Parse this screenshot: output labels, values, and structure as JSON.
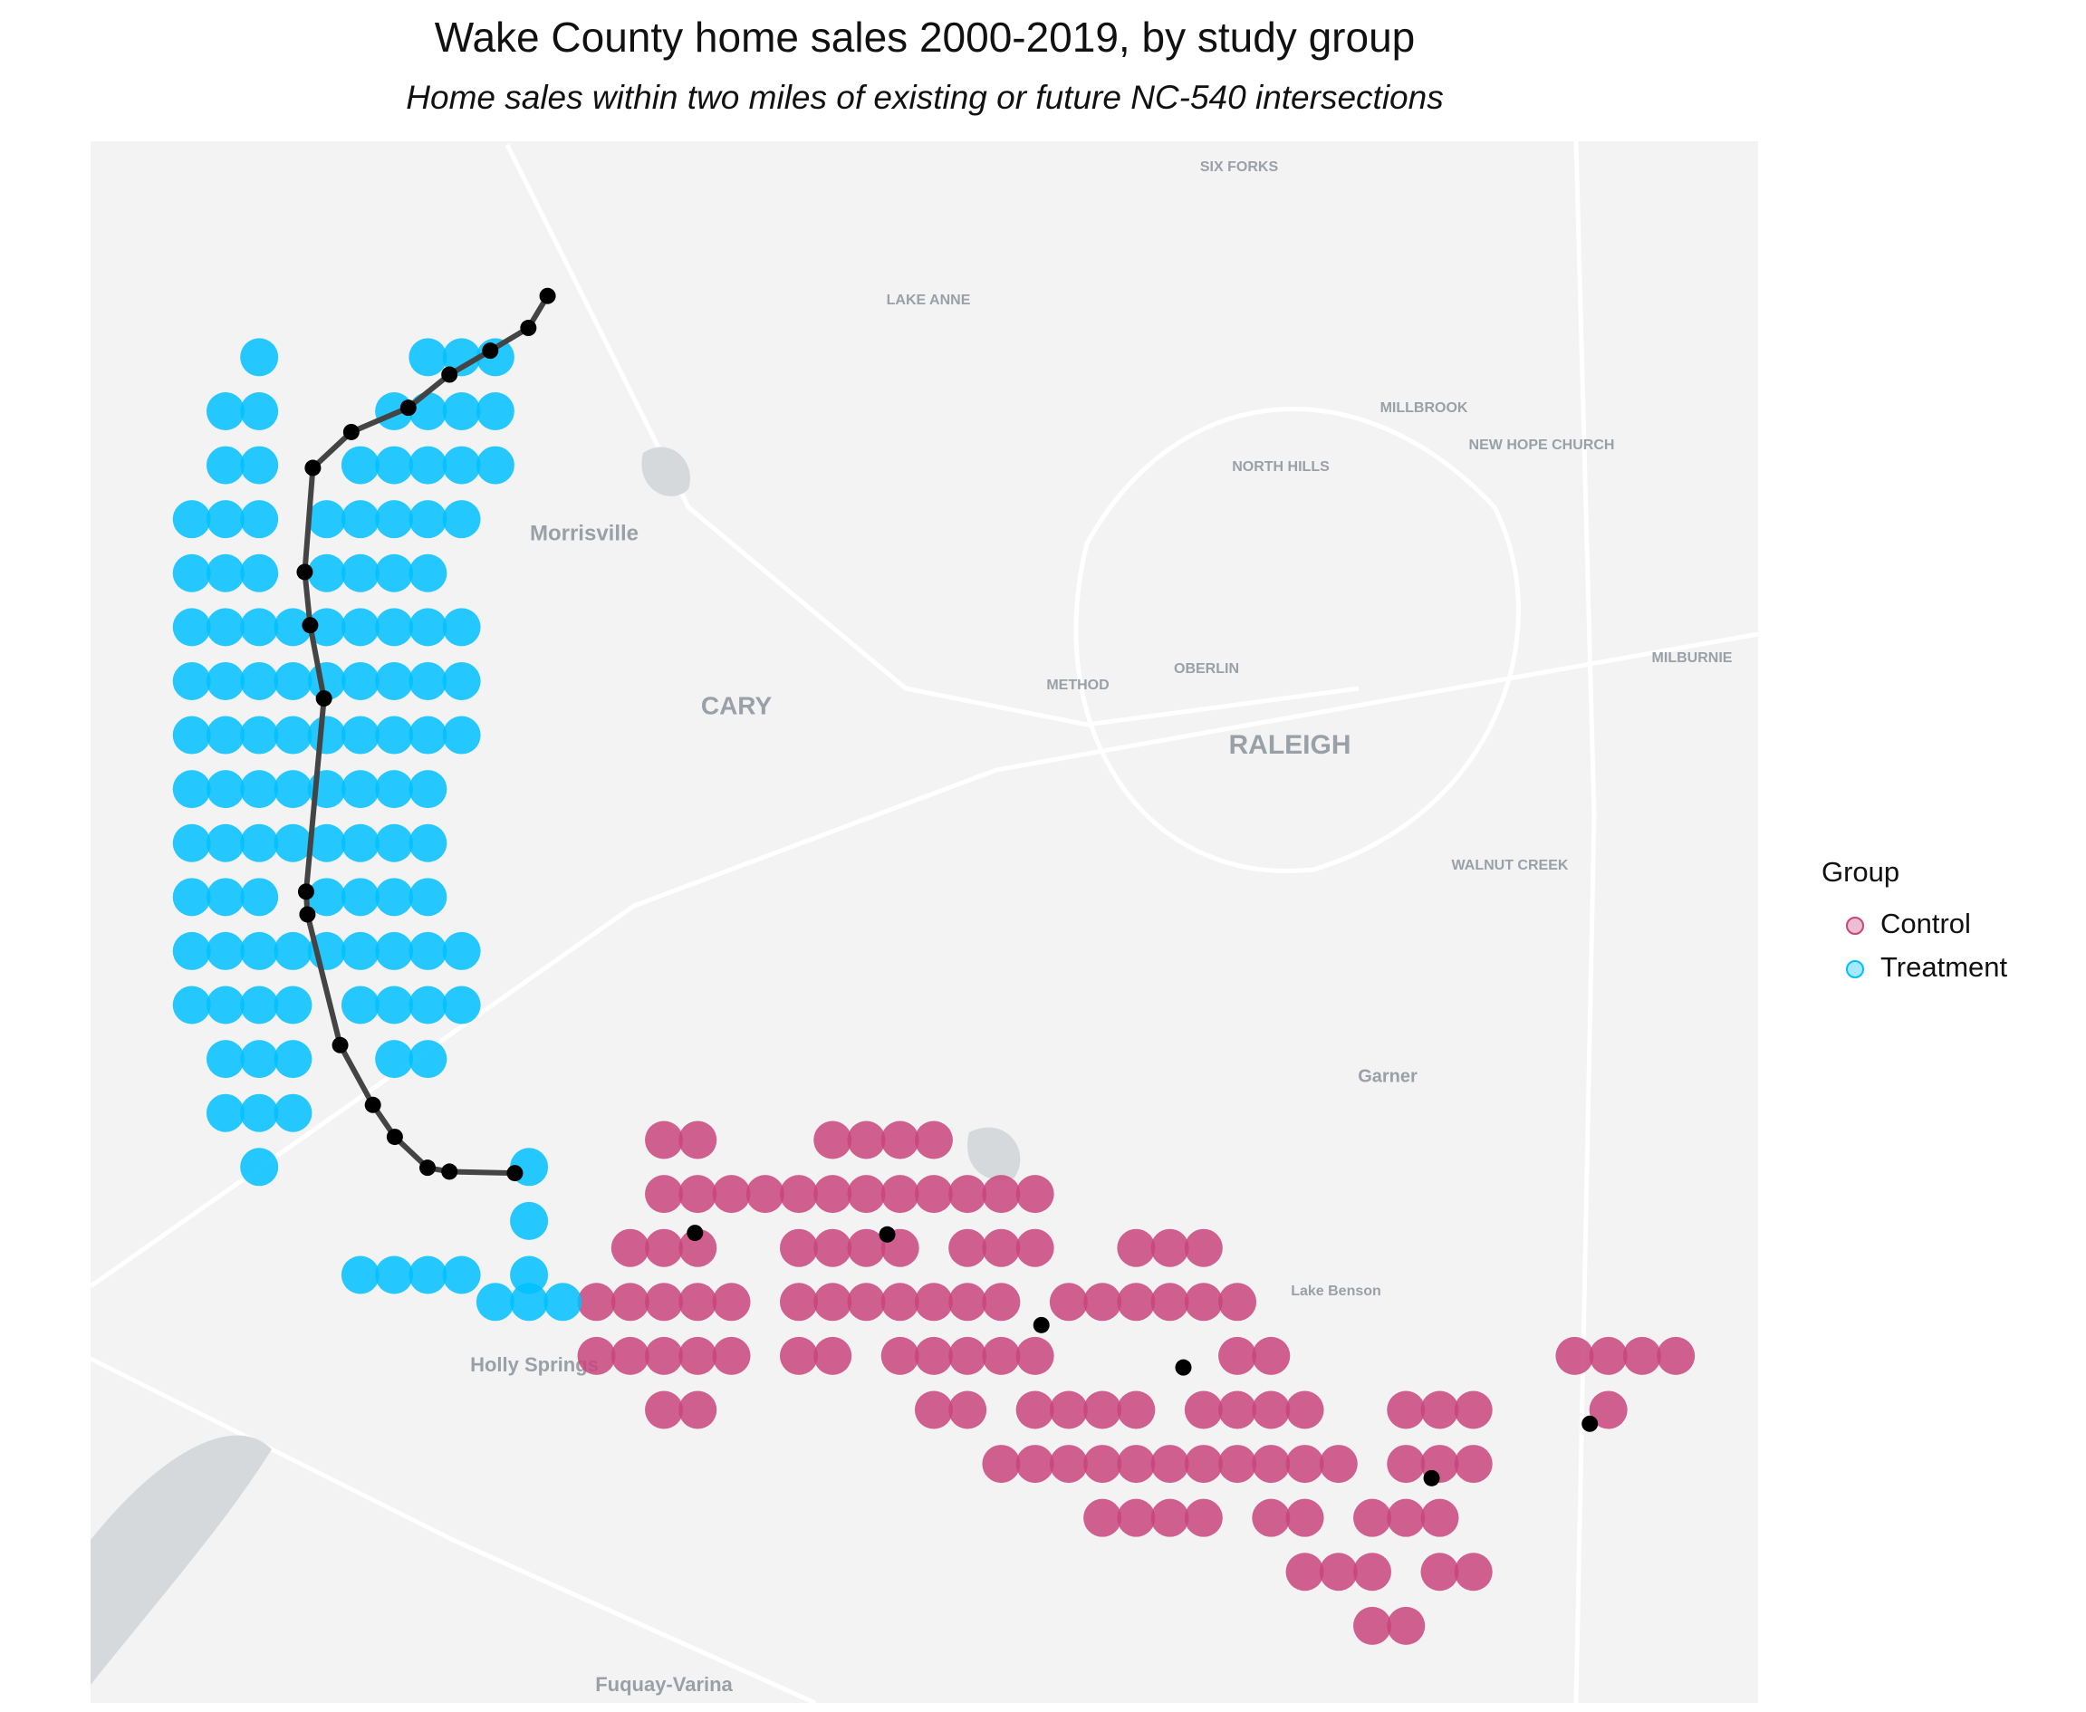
{
  "chart_data": {
    "type": "map",
    "title": "Wake County home sales 2000-2019, by study group",
    "subtitle": "Home sales within two miles of existing or future NC-540 intersections",
    "xlim": [
      -78.95,
      -78.4556
    ],
    "ylim": [
      35.545,
      35.95
    ],
    "legend_title": "Group",
    "legend": "right",
    "series": [
      {
        "name": "Control",
        "color": "#c8447c",
        "points": [
          [
            -78.78,
            35.691
          ],
          [
            -78.77,
            35.691
          ],
          [
            -78.73,
            35.691
          ],
          [
            -78.72,
            35.691
          ],
          [
            -78.71,
            35.691
          ],
          [
            -78.7,
            35.691
          ],
          [
            -78.78,
            35.677
          ],
          [
            -78.77,
            35.677
          ],
          [
            -78.76,
            35.677
          ],
          [
            -78.75,
            35.677
          ],
          [
            -78.74,
            35.677
          ],
          [
            -78.73,
            35.677
          ],
          [
            -78.72,
            35.677
          ],
          [
            -78.71,
            35.677
          ],
          [
            -78.7,
            35.677
          ],
          [
            -78.69,
            35.677
          ],
          [
            -78.68,
            35.677
          ],
          [
            -78.67,
            35.677
          ],
          [
            -78.79,
            35.663
          ],
          [
            -78.78,
            35.663
          ],
          [
            -78.77,
            35.663
          ],
          [
            -78.74,
            35.663
          ],
          [
            -78.73,
            35.663
          ],
          [
            -78.72,
            35.663
          ],
          [
            -78.71,
            35.663
          ],
          [
            -78.69,
            35.663
          ],
          [
            -78.68,
            35.663
          ],
          [
            -78.67,
            35.663
          ],
          [
            -78.64,
            35.663
          ],
          [
            -78.63,
            35.663
          ],
          [
            -78.62,
            35.663
          ],
          [
            -78.8,
            35.649
          ],
          [
            -78.79,
            35.649
          ],
          [
            -78.78,
            35.649
          ],
          [
            -78.77,
            35.649
          ],
          [
            -78.76,
            35.649
          ],
          [
            -78.74,
            35.649
          ],
          [
            -78.73,
            35.649
          ],
          [
            -78.72,
            35.649
          ],
          [
            -78.71,
            35.649
          ],
          [
            -78.7,
            35.649
          ],
          [
            -78.69,
            35.649
          ],
          [
            -78.68,
            35.649
          ],
          [
            -78.66,
            35.649
          ],
          [
            -78.65,
            35.649
          ],
          [
            -78.64,
            35.649
          ],
          [
            -78.63,
            35.649
          ],
          [
            -78.62,
            35.649
          ],
          [
            -78.61,
            35.649
          ],
          [
            -78.8,
            35.635
          ],
          [
            -78.79,
            35.635
          ],
          [
            -78.78,
            35.635
          ],
          [
            -78.77,
            35.635
          ],
          [
            -78.76,
            35.635
          ],
          [
            -78.74,
            35.635
          ],
          [
            -78.73,
            35.635
          ],
          [
            -78.71,
            35.635
          ],
          [
            -78.7,
            35.635
          ],
          [
            -78.69,
            35.635
          ],
          [
            -78.68,
            35.635
          ],
          [
            -78.67,
            35.635
          ],
          [
            -78.61,
            35.635
          ],
          [
            -78.6,
            35.635
          ],
          [
            -78.51,
            35.635
          ],
          [
            -78.5,
            35.635
          ],
          [
            -78.49,
            35.635
          ],
          [
            -78.48,
            35.635
          ],
          [
            -78.78,
            35.621
          ],
          [
            -78.77,
            35.621
          ],
          [
            -78.7,
            35.621
          ],
          [
            -78.69,
            35.621
          ],
          [
            -78.67,
            35.621
          ],
          [
            -78.66,
            35.621
          ],
          [
            -78.65,
            35.621
          ],
          [
            -78.64,
            35.621
          ],
          [
            -78.62,
            35.621
          ],
          [
            -78.61,
            35.621
          ],
          [
            -78.6,
            35.621
          ],
          [
            -78.59,
            35.621
          ],
          [
            -78.56,
            35.621
          ],
          [
            -78.55,
            35.621
          ],
          [
            -78.54,
            35.621
          ],
          [
            -78.5,
            35.621
          ],
          [
            -78.68,
            35.607
          ],
          [
            -78.67,
            35.607
          ],
          [
            -78.66,
            35.607
          ],
          [
            -78.65,
            35.607
          ],
          [
            -78.64,
            35.607
          ],
          [
            -78.63,
            35.607
          ],
          [
            -78.62,
            35.607
          ],
          [
            -78.61,
            35.607
          ],
          [
            -78.6,
            35.607
          ],
          [
            -78.59,
            35.607
          ],
          [
            -78.58,
            35.607
          ],
          [
            -78.56,
            35.607
          ],
          [
            -78.55,
            35.607
          ],
          [
            -78.54,
            35.607
          ],
          [
            -78.65,
            35.593
          ],
          [
            -78.64,
            35.593
          ],
          [
            -78.63,
            35.593
          ],
          [
            -78.62,
            35.593
          ],
          [
            -78.6,
            35.593
          ],
          [
            -78.59,
            35.593
          ],
          [
            -78.57,
            35.593
          ],
          [
            -78.56,
            35.593
          ],
          [
            -78.55,
            35.593
          ],
          [
            -78.59,
            35.579
          ],
          [
            -78.58,
            35.579
          ],
          [
            -78.57,
            35.579
          ],
          [
            -78.55,
            35.579
          ],
          [
            -78.54,
            35.579
          ],
          [
            -78.57,
            35.565
          ],
          [
            -78.56,
            35.565
          ]
        ]
      },
      {
        "name": "Treatment",
        "color": "#00bfff",
        "points": [
          [
            -78.85,
            35.894
          ],
          [
            -78.84,
            35.894
          ],
          [
            -78.83,
            35.894
          ],
          [
            -78.9,
            35.894
          ],
          [
            -78.91,
            35.88
          ],
          [
            -78.9,
            35.88
          ],
          [
            -78.86,
            35.88
          ],
          [
            -78.85,
            35.88
          ],
          [
            -78.84,
            35.88
          ],
          [
            -78.83,
            35.88
          ],
          [
            -78.91,
            35.866
          ],
          [
            -78.9,
            35.866
          ],
          [
            -78.87,
            35.866
          ],
          [
            -78.86,
            35.866
          ],
          [
            -78.85,
            35.866
          ],
          [
            -78.84,
            35.866
          ],
          [
            -78.83,
            35.866
          ],
          [
            -78.92,
            35.852
          ],
          [
            -78.91,
            35.852
          ],
          [
            -78.9,
            35.852
          ],
          [
            -78.88,
            35.852
          ],
          [
            -78.87,
            35.852
          ],
          [
            -78.86,
            35.852
          ],
          [
            -78.85,
            35.852
          ],
          [
            -78.84,
            35.852
          ],
          [
            -78.92,
            35.838
          ],
          [
            -78.91,
            35.838
          ],
          [
            -78.9,
            35.838
          ],
          [
            -78.88,
            35.838
          ],
          [
            -78.87,
            35.838
          ],
          [
            -78.86,
            35.838
          ],
          [
            -78.85,
            35.838
          ],
          [
            -78.92,
            35.824
          ],
          [
            -78.91,
            35.824
          ],
          [
            -78.9,
            35.824
          ],
          [
            -78.89,
            35.824
          ],
          [
            -78.88,
            35.824
          ],
          [
            -78.87,
            35.824
          ],
          [
            -78.86,
            35.824
          ],
          [
            -78.85,
            35.824
          ],
          [
            -78.84,
            35.824
          ],
          [
            -78.92,
            35.81
          ],
          [
            -78.91,
            35.81
          ],
          [
            -78.9,
            35.81
          ],
          [
            -78.89,
            35.81
          ],
          [
            -78.88,
            35.81
          ],
          [
            -78.87,
            35.81
          ],
          [
            -78.86,
            35.81
          ],
          [
            -78.85,
            35.81
          ],
          [
            -78.84,
            35.81
          ],
          [
            -78.92,
            35.796
          ],
          [
            -78.91,
            35.796
          ],
          [
            -78.9,
            35.796
          ],
          [
            -78.89,
            35.796
          ],
          [
            -78.88,
            35.796
          ],
          [
            -78.87,
            35.796
          ],
          [
            -78.86,
            35.796
          ],
          [
            -78.85,
            35.796
          ],
          [
            -78.84,
            35.796
          ],
          [
            -78.92,
            35.782
          ],
          [
            -78.91,
            35.782
          ],
          [
            -78.9,
            35.782
          ],
          [
            -78.89,
            35.782
          ],
          [
            -78.88,
            35.782
          ],
          [
            -78.87,
            35.782
          ],
          [
            -78.86,
            35.782
          ],
          [
            -78.85,
            35.782
          ],
          [
            -78.92,
            35.768
          ],
          [
            -78.91,
            35.768
          ],
          [
            -78.9,
            35.768
          ],
          [
            -78.89,
            35.768
          ],
          [
            -78.88,
            35.768
          ],
          [
            -78.87,
            35.768
          ],
          [
            -78.86,
            35.768
          ],
          [
            -78.85,
            35.768
          ],
          [
            -78.92,
            35.754
          ],
          [
            -78.91,
            35.754
          ],
          [
            -78.9,
            35.754
          ],
          [
            -78.88,
            35.754
          ],
          [
            -78.87,
            35.754
          ],
          [
            -78.86,
            35.754
          ],
          [
            -78.85,
            35.754
          ],
          [
            -78.92,
            35.74
          ],
          [
            -78.91,
            35.74
          ],
          [
            -78.9,
            35.74
          ],
          [
            -78.89,
            35.74
          ],
          [
            -78.88,
            35.74
          ],
          [
            -78.87,
            35.74
          ],
          [
            -78.86,
            35.74
          ],
          [
            -78.85,
            35.74
          ],
          [
            -78.84,
            35.74
          ],
          [
            -78.92,
            35.726
          ],
          [
            -78.91,
            35.726
          ],
          [
            -78.9,
            35.726
          ],
          [
            -78.89,
            35.726
          ],
          [
            -78.87,
            35.726
          ],
          [
            -78.86,
            35.726
          ],
          [
            -78.85,
            35.726
          ],
          [
            -78.84,
            35.726
          ],
          [
            -78.91,
            35.712
          ],
          [
            -78.9,
            35.712
          ],
          [
            -78.89,
            35.712
          ],
          [
            -78.86,
            35.712
          ],
          [
            -78.85,
            35.712
          ],
          [
            -78.91,
            35.698
          ],
          [
            -78.9,
            35.698
          ],
          [
            -78.89,
            35.698
          ],
          [
            -78.9,
            35.684
          ],
          [
            -78.82,
            35.684
          ],
          [
            -78.82,
            35.67
          ],
          [
            -78.87,
            35.656
          ],
          [
            -78.86,
            35.656
          ],
          [
            -78.85,
            35.656
          ],
          [
            -78.84,
            35.656
          ],
          [
            -78.82,
            35.656
          ],
          [
            -78.83,
            35.649
          ],
          [
            -78.82,
            35.649
          ],
          [
            -78.81,
            35.649
          ]
        ]
      }
    ],
    "road": {
      "color": "#444444",
      "points": [
        [
          -78.8145,
          35.9099
        ],
        [
          -78.8202,
          35.9016
        ],
        [
          -78.8315,
          35.8957
        ],
        [
          -78.8436,
          35.8895
        ],
        [
          -78.8558,
          35.8809
        ],
        [
          -78.8727,
          35.8746
        ],
        [
          -78.8841,
          35.8653
        ],
        [
          -78.8865,
          35.8383
        ],
        [
          -78.8849,
          35.8245
        ],
        [
          -78.8808,
          35.8055
        ],
        [
          -78.8861,
          35.7554
        ],
        [
          -78.8857,
          35.7495
        ],
        [
          -78.876,
          35.7156
        ],
        [
          -78.8663,
          35.7001
        ],
        [
          -78.8598,
          35.6918
        ],
        [
          -78.8501,
          35.6838
        ],
        [
          -78.8436,
          35.6828
        ],
        [
          -78.8242,
          35.6824
        ]
      ]
    },
    "intersections": {
      "color": "#000000",
      "points": [
        [
          -78.8145,
          35.9099
        ],
        [
          -78.8202,
          35.9016
        ],
        [
          -78.8315,
          35.8957
        ],
        [
          -78.8436,
          35.8895
        ],
        [
          -78.8558,
          35.8809
        ],
        [
          -78.8727,
          35.8746
        ],
        [
          -78.8841,
          35.8653
        ],
        [
          -78.8865,
          35.8383
        ],
        [
          -78.8849,
          35.8245
        ],
        [
          -78.8808,
          35.8055
        ],
        [
          -78.8861,
          35.7554
        ],
        [
          -78.8857,
          35.7495
        ],
        [
          -78.876,
          35.7156
        ],
        [
          -78.8663,
          35.7001
        ],
        [
          -78.8598,
          35.6918
        ],
        [
          -78.8501,
          35.6838
        ],
        [
          -78.8436,
          35.6828
        ],
        [
          -78.8242,
          35.6824
        ],
        [
          -78.7708,
          35.6669
        ],
        [
          -78.7138,
          35.6665
        ],
        [
          -78.6681,
          35.643
        ],
        [
          -78.626,
          35.632
        ],
        [
          -78.5524,
          35.6033
        ],
        [
          -78.5055,
          35.6174
        ]
      ]
    },
    "map_labels": [
      "Morrisville",
      "CARY",
      "RALEIGH",
      "Holly Springs",
      "Fuquay-Varina",
      "Garner",
      "OBERLIN",
      "METHOD",
      "NORTH HILLS",
      "MILLBROOK",
      "NEW HOPE CHURCH",
      "SIX FORKS",
      "LAKE ANNE",
      "MILBURNIE",
      "WALNUT CREEK",
      "Lake Benson"
    ]
  }
}
